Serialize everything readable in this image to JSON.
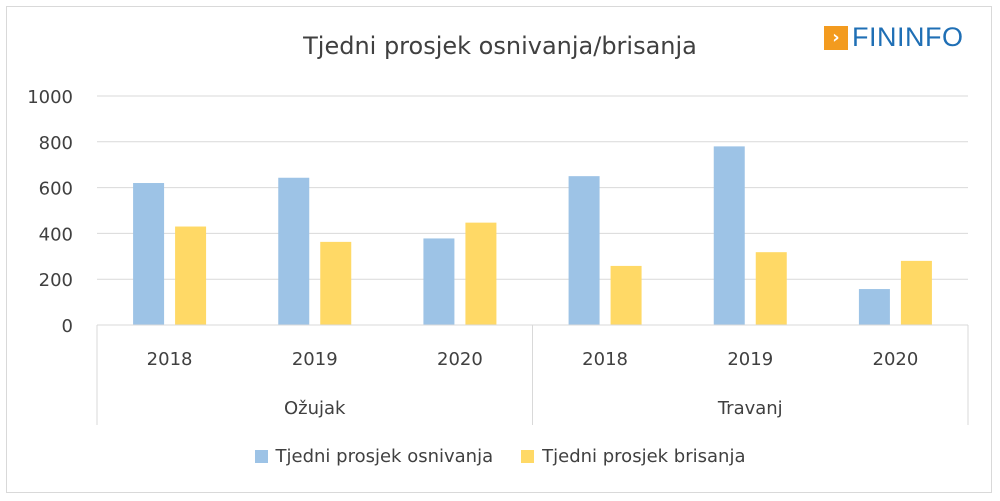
{
  "logo": {
    "text": "FININFO",
    "icon": "arrow-right-icon"
  },
  "chart_data": {
    "type": "bar",
    "title": "Tjedni prosjek osnivanja/brisanja",
    "xlabel": "",
    "ylabel": "",
    "ylim": [
      0,
      1000
    ],
    "yticks": [
      "0",
      "200",
      "400",
      "600",
      "800",
      "1000"
    ],
    "grid": true,
    "legend_position": "bottom",
    "groups": [
      {
        "label": "Ožujak",
        "categories": [
          "2018",
          "2019",
          "2020"
        ]
      },
      {
        "label": "Travanj",
        "categories": [
          "2018",
          "2019",
          "2020"
        ]
      }
    ],
    "series": [
      {
        "name": "Tjedni prosjek osnivanja",
        "color": "#9dc3e6",
        "values": [
          620,
          643,
          378,
          650,
          780,
          157
        ]
      },
      {
        "name": "Tjedni prosjek brisanja",
        "color": "#ffd966",
        "values": [
          430,
          363,
          447,
          258,
          318,
          280
        ]
      }
    ]
  }
}
